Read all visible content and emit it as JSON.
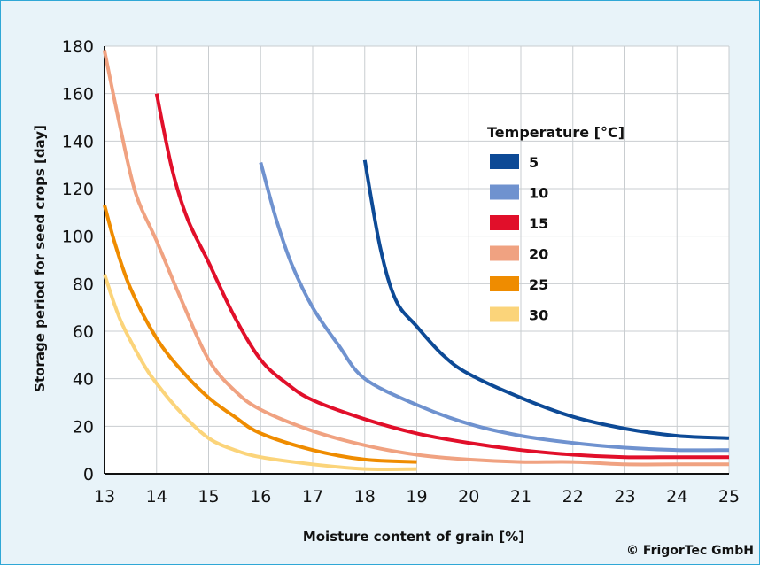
{
  "chart_data": {
    "type": "line",
    "title": "",
    "xlabel": "Moisture content of grain [%]",
    "ylabel": "Storage period for seed crops [day]",
    "xlim": [
      13,
      25
    ],
    "ylim": [
      0,
      180
    ],
    "x_ticks": [
      "13",
      "14",
      "15",
      "16",
      "17",
      "18",
      "19",
      "20",
      "21",
      "22",
      "23",
      "24",
      "25"
    ],
    "y_ticks": [
      "0",
      "20",
      "40",
      "60",
      "80",
      "100",
      "120",
      "140",
      "160",
      "180"
    ],
    "grid": true,
    "legend": {
      "title": "Temperature [°C]",
      "position": "top-right"
    },
    "series": [
      {
        "name": "5",
        "color": "#0d4a96",
        "points": [
          [
            18,
            132
          ],
          [
            18.3,
            95
          ],
          [
            18.6,
            73
          ],
          [
            19,
            62
          ],
          [
            19.5,
            50
          ],
          [
            20,
            42
          ],
          [
            21,
            32
          ],
          [
            22,
            24
          ],
          [
            23,
            19
          ],
          [
            24,
            16
          ],
          [
            25,
            15
          ]
        ]
      },
      {
        "name": "10",
        "color": "#6f92cf",
        "points": [
          [
            16,
            131
          ],
          [
            16.3,
            107
          ],
          [
            16.6,
            88
          ],
          [
            17,
            70
          ],
          [
            17.5,
            54
          ],
          [
            18,
            40
          ],
          [
            19,
            29
          ],
          [
            20,
            21
          ],
          [
            21,
            16
          ],
          [
            22,
            13
          ],
          [
            23,
            11
          ],
          [
            24,
            10
          ],
          [
            25,
            10
          ]
        ]
      },
      {
        "name": "15",
        "color": "#e10f2a",
        "points": [
          [
            14,
            160
          ],
          [
            14.3,
            128
          ],
          [
            14.6,
            107
          ],
          [
            15,
            89
          ],
          [
            15.5,
            66
          ],
          [
            16,
            48
          ],
          [
            16.5,
            38
          ],
          [
            17,
            31
          ],
          [
            18,
            23
          ],
          [
            19,
            17
          ],
          [
            20,
            13
          ],
          [
            21,
            10
          ],
          [
            22,
            8
          ],
          [
            23,
            7
          ],
          [
            24,
            7
          ],
          [
            25,
            7
          ]
        ]
      },
      {
        "name": "20",
        "color": "#f0a281",
        "points": [
          [
            13,
            178
          ],
          [
            13.3,
            146
          ],
          [
            13.6,
            118
          ],
          [
            14,
            98
          ],
          [
            14.5,
            72
          ],
          [
            15,
            48
          ],
          [
            15.5,
            35
          ],
          [
            16,
            27
          ],
          [
            17,
            18
          ],
          [
            18,
            12
          ],
          [
            19,
            8
          ],
          [
            20,
            6
          ],
          [
            21,
            5
          ],
          [
            22,
            5
          ],
          [
            23,
            4
          ],
          [
            24,
            4
          ],
          [
            25,
            4
          ]
        ]
      },
      {
        "name": "25",
        "color": "#ef8c00",
        "points": [
          [
            13,
            113
          ],
          [
            13.2,
            97
          ],
          [
            13.5,
            78
          ],
          [
            14,
            57
          ],
          [
            14.5,
            43
          ],
          [
            15,
            32
          ],
          [
            15.5,
            24
          ],
          [
            16,
            17
          ],
          [
            17,
            10
          ],
          [
            18,
            6
          ],
          [
            19,
            5
          ]
        ]
      },
      {
        "name": "30",
        "color": "#fbd47a",
        "points": [
          [
            13,
            84
          ],
          [
            13.3,
            65
          ],
          [
            13.7,
            48
          ],
          [
            14,
            38
          ],
          [
            14.5,
            25
          ],
          [
            15,
            15
          ],
          [
            15.5,
            10
          ],
          [
            16,
            7
          ],
          [
            17,
            4
          ],
          [
            18,
            2
          ],
          [
            19,
            2
          ]
        ]
      }
    ]
  },
  "copyright": "© FrigorTec GmbH"
}
